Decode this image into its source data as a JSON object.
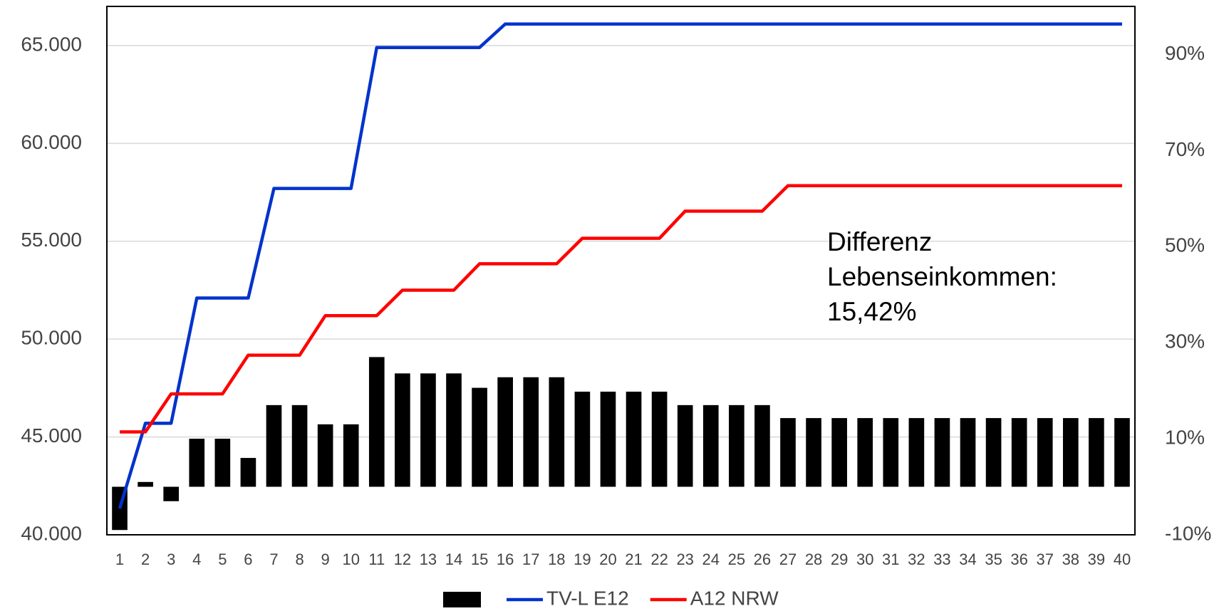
{
  "chart_data": {
    "type": "bar-line",
    "categories": [
      "1",
      "2",
      "3",
      "4",
      "5",
      "6",
      "7",
      "8",
      "9",
      "10",
      "11",
      "12",
      "13",
      "14",
      "15",
      "16",
      "17",
      "18",
      "19",
      "20",
      "21",
      "22",
      "23",
      "24",
      "25",
      "26",
      "27",
      "28",
      "29",
      "30",
      "31",
      "32",
      "33",
      "34",
      "35",
      "36",
      "37",
      "38",
      "39",
      "40"
    ],
    "series": [
      {
        "type": "bar",
        "axis": "y2",
        "color": "#000000",
        "values": [
          -9,
          1,
          -3,
          10,
          10,
          6,
          17,
          17,
          13,
          13,
          27,
          23.6,
          23.6,
          23.6,
          20.6,
          22.8,
          22.8,
          22.8,
          19.8,
          19.8,
          19.8,
          19.8,
          17,
          17,
          17,
          17,
          14.3,
          14.3,
          14.3,
          14.3,
          14.3,
          14.3,
          14.3,
          14.3,
          14.3,
          14.3,
          14.3,
          14.3,
          14.3,
          14.3
        ]
      },
      {
        "type": "line",
        "name": "TV-L E12",
        "color": "#0033cc",
        "values": [
          41345,
          45700,
          45700,
          52100,
          52100,
          52100,
          57700,
          57700,
          57700,
          57700,
          64900,
          64900,
          64900,
          64900,
          64900,
          66100,
          66100,
          66100,
          66100,
          66100,
          66100,
          66100,
          66100,
          66100,
          66100,
          66100,
          66100,
          66100,
          66100,
          66100,
          66100,
          66100,
          66100,
          66100,
          66100,
          66100,
          66100,
          66100,
          66100,
          66100
        ]
      },
      {
        "type": "line",
        "name": "A12 NRW",
        "color": "#ff0000",
        "values": [
          45260,
          45260,
          47200,
          47200,
          47200,
          49180,
          49180,
          49180,
          51200,
          51200,
          51200,
          52500,
          52500,
          52500,
          53850,
          53850,
          53850,
          53850,
          55150,
          55150,
          55150,
          55150,
          56540,
          56540,
          56540,
          56540,
          57840,
          57840,
          57840,
          57840,
          57840,
          57840,
          57840,
          57840,
          57840,
          57840,
          57840,
          57840,
          57840,
          57840
        ]
      }
    ],
    "ylim": [
      40000,
      67000
    ],
    "yticks": [
      {
        "value": 40000,
        "label": "40.000"
      },
      {
        "value": 45000,
        "label": "45.000"
      },
      {
        "value": 50000,
        "label": "50.000"
      },
      {
        "value": 55000,
        "label": "55.000"
      },
      {
        "value": 60000,
        "label": "60.000"
      },
      {
        "value": 65000,
        "label": "65.000"
      }
    ],
    "y2lim": [
      -10,
      100
    ],
    "y2ticks": [
      {
        "value": -10,
        "label": "-10%"
      },
      {
        "value": 10,
        "label": "10%"
      },
      {
        "value": 30,
        "label": "30%"
      },
      {
        "value": 50,
        "label": "50%"
      },
      {
        "value": 70,
        "label": "70%"
      },
      {
        "value": 90,
        "label": "90%"
      }
    ],
    "grid": true,
    "annotation": [
      "Differenz",
      "Lebenseinkommen:",
      "15,42%"
    ]
  }
}
